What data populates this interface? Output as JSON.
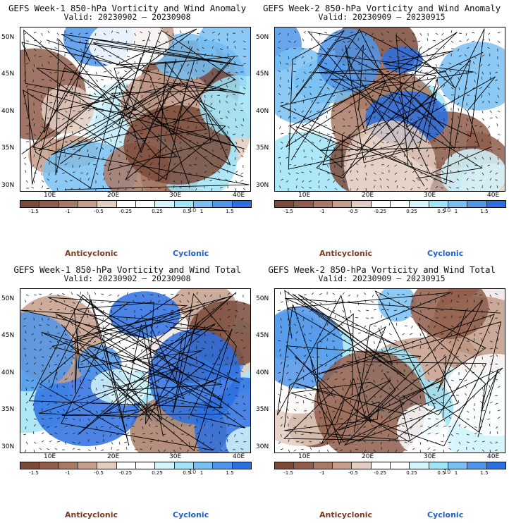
{
  "panels": [
    {
      "title": "GEFS Week-1 850-hPa Vorticity and Wind Anomaly",
      "valid": "Valid: 20230902 – 20230908",
      "seed": 11
    },
    {
      "title": "GEFS Week-2 850-hPa Vorticity and Wind Anomaly",
      "valid": "Valid: 20230909 – 20230915",
      "seed": 23
    },
    {
      "title": "GEFS Week-1 850-hPa Vorticity and Wind Total",
      "valid": "Valid: 20230902 – 20230908",
      "seed": 37
    },
    {
      "title": "GEFS Week-2 850-hPa Vorticity and Wind Total",
      "valid": "Valid: 20230909 – 20230915",
      "seed": 51
    }
  ],
  "lat_labels": [
    "50N",
    "45N",
    "40N",
    "35N",
    "30N"
  ],
  "lon_labels": [
    "10E",
    "20E",
    "30E",
    "40E"
  ],
  "colorbar": {
    "colors": [
      "#7b4a3a",
      "#8f5d4a",
      "#a87a66",
      "#c49d8b",
      "#e3ccc0",
      "#ffffff",
      "#ffffff",
      "#d4f4fb",
      "#9fe3f7",
      "#78bff2",
      "#4f95ea",
      "#2c6fe0"
    ],
    "ticks": [
      "-1.5",
      "-1",
      "-0.5",
      "-0.25",
      "0.25",
      "0.5",
      "1",
      "1.5"
    ],
    "scale": "10"
  },
  "legend": {
    "anticyclonic": "Anticyclonic",
    "cyclonic": "Cyclonic"
  }
}
